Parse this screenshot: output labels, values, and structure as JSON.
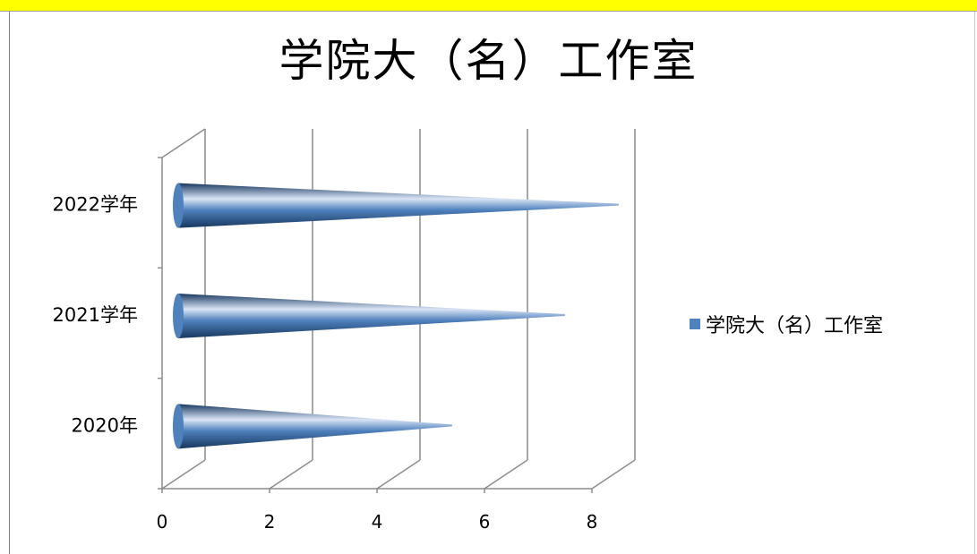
{
  "chart_data": {
    "type": "bar",
    "style": "3d-cone-horizontal",
    "title": "学院大（名）工作室",
    "categories": [
      "2020年",
      "2021学年",
      "2022学年"
    ],
    "series": [
      {
        "name": "学院大（名）工作室",
        "values": [
          5,
          7.1,
          8.1
        ],
        "color": "#4f81bd"
      }
    ],
    "xlim": [
      0,
      8
    ],
    "x_ticks": [
      "0",
      "2",
      "4",
      "6",
      "8"
    ],
    "grid": true,
    "legend_position": "right"
  },
  "colors": {
    "banner": "#ffff00",
    "gridline": "#8c8c8c",
    "cone_dark": "#17375e",
    "cone_mid": "#4f81bd",
    "cone_light": "#d9e4f5"
  }
}
